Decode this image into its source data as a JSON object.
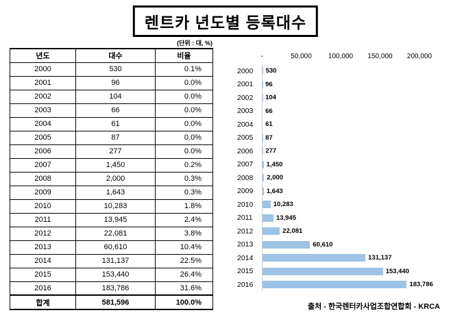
{
  "title": "렌트카 년도별 등록대수",
  "unit_note": "(단위 : 대, %)",
  "source": "출처 - 한국렌터카사업조합연합회 - KRCA",
  "table": {
    "headers": [
      "년도",
      "대수",
      "비율"
    ],
    "rows": [
      [
        "2000",
        "530",
        "0.1%"
      ],
      [
        "2001",
        "96",
        "0.0%"
      ],
      [
        "2002",
        "104",
        "0.0%"
      ],
      [
        "2003",
        "66",
        "0.0%"
      ],
      [
        "2004",
        "61",
        "0.0%"
      ],
      [
        "2005",
        "87",
        "0.0%"
      ],
      [
        "2006",
        "277",
        "0.0%"
      ],
      [
        "2007",
        "1,450",
        "0.2%"
      ],
      [
        "2008",
        "2,000",
        "0.3%"
      ],
      [
        "2009",
        "1,643",
        "0.3%"
      ],
      [
        "2010",
        "10,283",
        "1.8%"
      ],
      [
        "2011",
        "13,945",
        "2.4%"
      ],
      [
        "2012",
        "22,081",
        "3.8%"
      ],
      [
        "2013",
        "60,610",
        "10.4%"
      ],
      [
        "2014",
        "131,137",
        "22.5%"
      ],
      [
        "2015",
        "153,440",
        "26.4%"
      ],
      [
        "2016",
        "183,786",
        "31.6%"
      ]
    ],
    "total_row": [
      "합계",
      "581,596",
      "100.0%"
    ]
  },
  "chart_data": {
    "type": "bar",
    "orientation": "horizontal",
    "title": "",
    "xlabel": "",
    "ylabel": "",
    "categories": [
      "2000",
      "2001",
      "2002",
      "2003",
      "2004",
      "2005",
      "2006",
      "2007",
      "2008",
      "2009",
      "2010",
      "2011",
      "2012",
      "2013",
      "2014",
      "2015",
      "2016"
    ],
    "values": [
      530,
      96,
      104,
      66,
      61,
      87,
      277,
      1450,
      2000,
      1643,
      10283,
      13945,
      22081,
      60610,
      131137,
      153440,
      183786
    ],
    "value_labels": [
      "530",
      "96",
      "104",
      "66",
      "61",
      "87",
      "277",
      "1,450",
      "2,000",
      "1,643",
      "10,283",
      "13,945",
      "22,081",
      "60,610",
      "131,137",
      "153,440",
      "183,786"
    ],
    "x_tick_labels": [
      "-",
      "50,000",
      "100,000",
      "150,000",
      "200,000"
    ],
    "x_tick_values": [
      0,
      50000,
      100000,
      150000,
      200000
    ],
    "xlim": [
      0,
      200000
    ],
    "bar_color": "#9dc3e6",
    "grid": "off",
    "legend": "none"
  }
}
